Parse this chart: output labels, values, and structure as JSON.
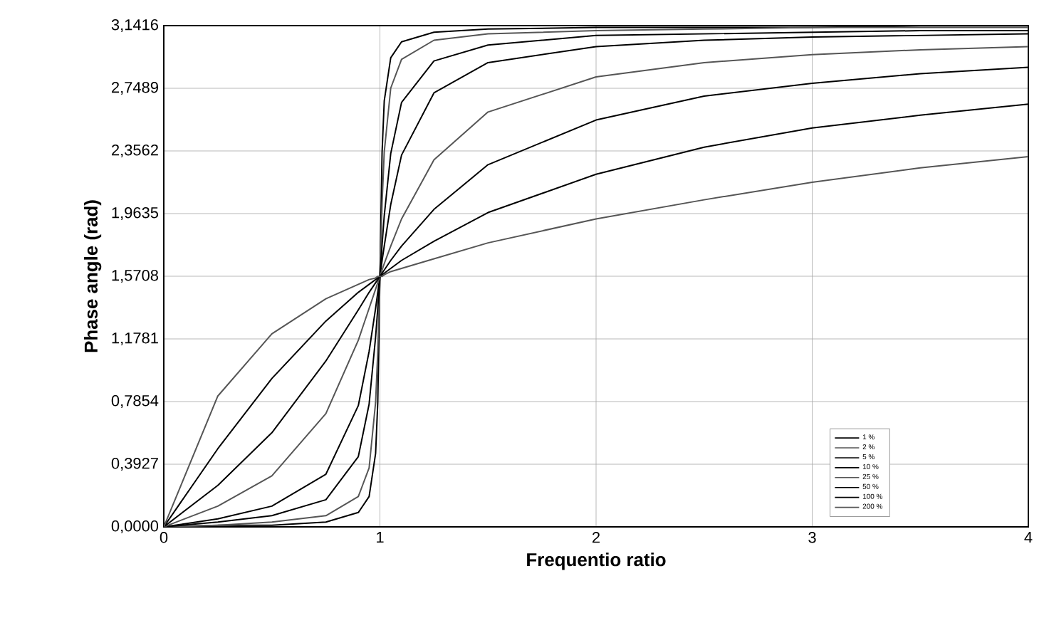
{
  "chart_data": {
    "type": "line",
    "xlabel": "Frequentio ratio",
    "ylabel": "Phase angle (rad)",
    "x": [
      0,
      0.25,
      0.5,
      0.75,
      0.9,
      0.95,
      0.98,
      0.99,
      1,
      1.01,
      1.02,
      1.05,
      1.1,
      1.25,
      1.5,
      2,
      2.5,
      3,
      3.5,
      4
    ],
    "series": [
      {
        "name": "1 %",
        "color": "#000000",
        "values": [
          0,
          0.01,
          0.01,
          0.03,
          0.09,
          0.19,
          0.46,
          0.78,
          1.57,
          2.35,
          2.67,
          2.94,
          3.04,
          3.1,
          3.12,
          3.13,
          3.13,
          3.13,
          3.14,
          3.14
        ]
      },
      {
        "name": "2 %",
        "color": "#555555",
        "values": [
          0,
          0.01,
          0.03,
          0.07,
          0.19,
          0.37,
          0.78,
          1.1,
          1.57,
          2.03,
          2.35,
          2.75,
          2.93,
          3.05,
          3.09,
          3.11,
          3.12,
          3.13,
          3.13,
          3.13
        ]
      },
      {
        "name": "5 %",
        "color": "#000000",
        "values": [
          0,
          0.03,
          0.07,
          0.17,
          0.44,
          0.77,
          1.19,
          1.37,
          1.57,
          1.77,
          1.95,
          2.34,
          2.66,
          2.92,
          3.02,
          3.08,
          3.09,
          3.1,
          3.11,
          3.11
        ]
      },
      {
        "name": "10 %",
        "color": "#000000",
        "values": [
          0,
          0.05,
          0.13,
          0.33,
          0.76,
          1.1,
          1.37,
          1.47,
          1.57,
          1.67,
          1.76,
          2.02,
          2.33,
          2.72,
          2.91,
          3.01,
          3.05,
          3.07,
          3.08,
          3.09
        ]
      },
      {
        "name": "25 %",
        "color": "#555555",
        "values": [
          0,
          0.13,
          0.32,
          0.71,
          1.17,
          1.37,
          1.49,
          1.53,
          1.57,
          1.61,
          1.65,
          1.76,
          1.93,
          2.3,
          2.6,
          2.82,
          2.91,
          2.96,
          2.99,
          3.01
        ]
      },
      {
        "name": "50 %",
        "color": "#000000",
        "values": [
          0,
          0.26,
          0.59,
          1.04,
          1.36,
          1.47,
          1.53,
          1.55,
          1.57,
          1.59,
          1.61,
          1.67,
          1.76,
          1.99,
          2.27,
          2.55,
          2.7,
          2.78,
          2.84,
          2.88
        ]
      },
      {
        "name": "100 %",
        "color": "#000000",
        "values": [
          0,
          0.49,
          0.93,
          1.29,
          1.47,
          1.52,
          1.55,
          1.56,
          1.57,
          1.58,
          1.59,
          1.62,
          1.67,
          1.79,
          1.97,
          2.21,
          2.38,
          2.5,
          2.58,
          2.65
        ]
      },
      {
        "name": "200 %",
        "color": "#555555",
        "values": [
          0,
          0.82,
          1.21,
          1.43,
          1.52,
          1.55,
          1.56,
          1.57,
          1.57,
          1.57,
          1.58,
          1.6,
          1.62,
          1.68,
          1.78,
          1.93,
          2.05,
          2.16,
          2.25,
          2.32
        ]
      }
    ],
    "xlim": [
      0,
      4
    ],
    "xticks": [
      0,
      1,
      2,
      3,
      4
    ],
    "ylim": [
      0,
      3.1416
    ],
    "yticks": [
      {
        "value": 0,
        "label": "0,0000"
      },
      {
        "value": 0.3927,
        "label": "0,3927"
      },
      {
        "value": 0.7854,
        "label": "0,7854"
      },
      {
        "value": 1.1781,
        "label": "1,1781"
      },
      {
        "value": 1.5708,
        "label": "1,5708"
      },
      {
        "value": 1.9635,
        "label": "1,9635"
      },
      {
        "value": 2.3562,
        "label": "2,3562"
      },
      {
        "value": 2.7489,
        "label": "2,7489"
      },
      {
        "value": 3.1416,
        "label": "3,1416"
      }
    ],
    "grid": true,
    "legend": "bottom right",
    "marker": "none",
    "line_style": "solid"
  }
}
